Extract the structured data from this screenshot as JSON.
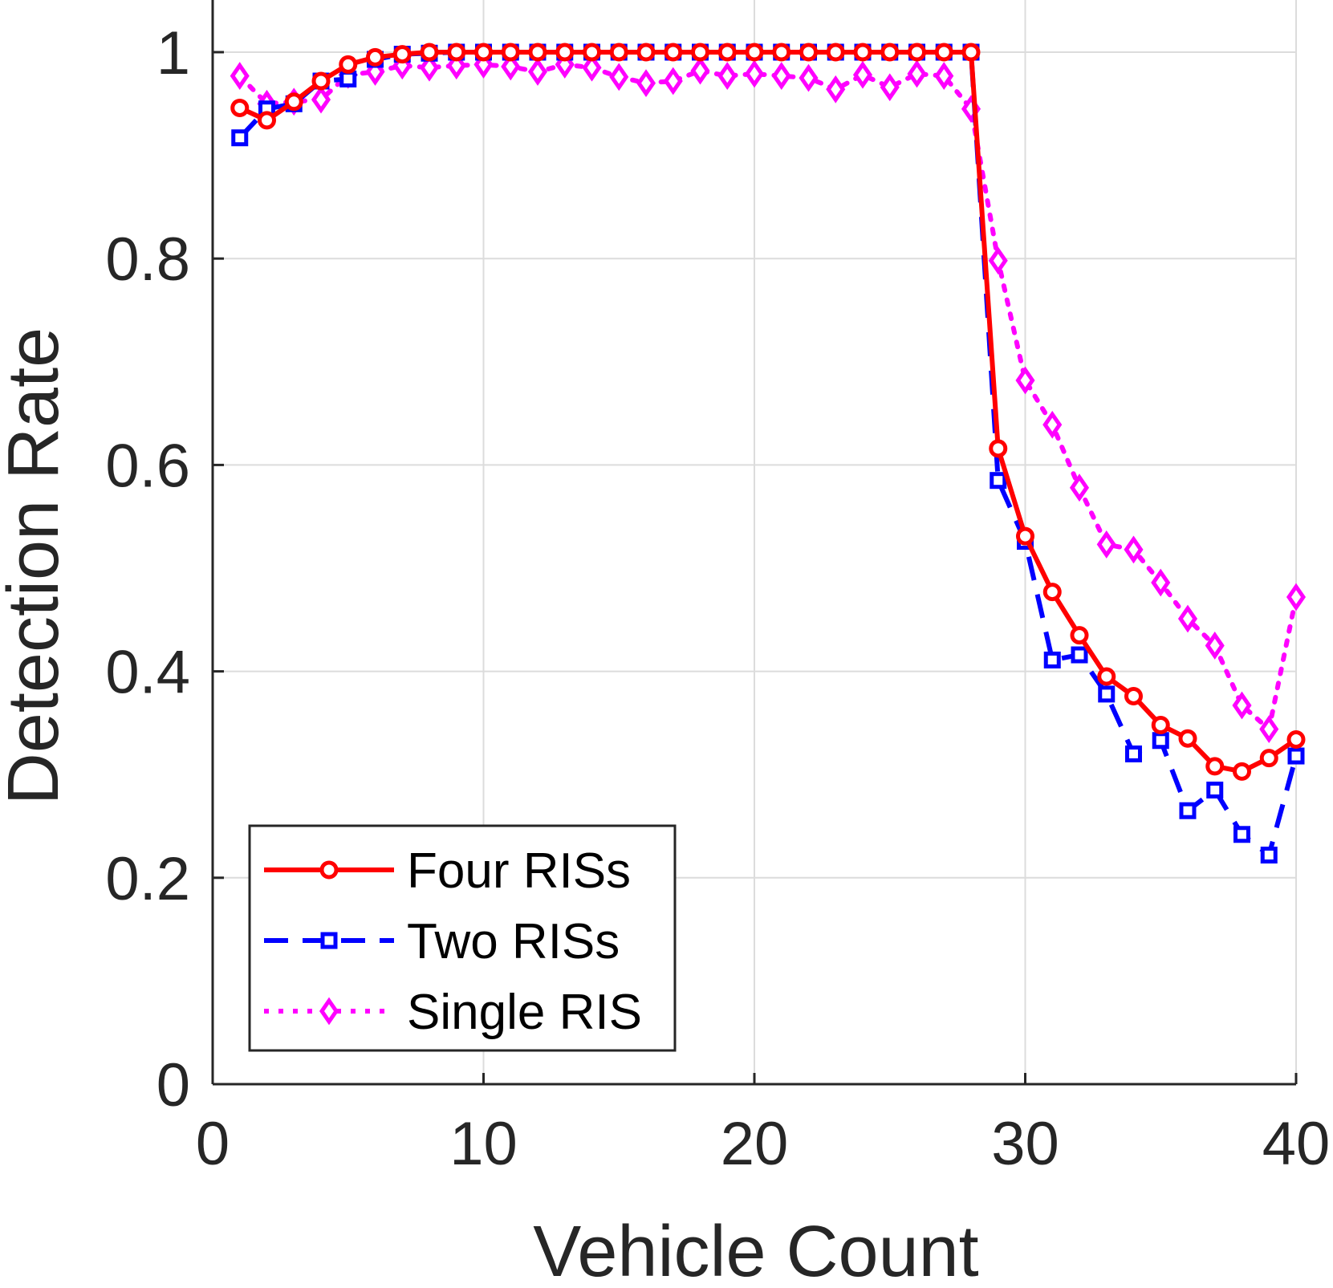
{
  "chart_data": {
    "type": "line",
    "title": "",
    "xlabel": "Vehicle Count",
    "ylabel": "Detection Rate",
    "xlim": [
      0,
      40
    ],
    "ylim": [
      0,
      1.05
    ],
    "xticks": [
      0,
      10,
      20,
      30,
      40
    ],
    "xtick_labels": [
      "0",
      "10",
      "20",
      "30",
      "40"
    ],
    "yticks": [
      0,
      0.2,
      0.4,
      0.6,
      0.8,
      1
    ],
    "ytick_labels": [
      "0",
      "0.2",
      "0.4",
      "0.6",
      "0.8",
      "1"
    ],
    "grid": true,
    "legend_position": "bottom-left",
    "x": [
      1,
      2,
      3,
      4,
      5,
      6,
      7,
      8,
      9,
      10,
      11,
      12,
      13,
      14,
      15,
      16,
      17,
      18,
      19,
      20,
      21,
      22,
      23,
      24,
      25,
      26,
      27,
      28,
      29,
      30,
      31,
      32,
      33,
      34,
      35,
      36,
      37,
      38,
      39,
      40
    ],
    "series": [
      {
        "name": "Four RISs",
        "color": "#ff0000",
        "line_style": "solid",
        "marker": "circle",
        "values": [
          0.946,
          0.934,
          0.952,
          0.972,
          0.988,
          0.995,
          0.998,
          1,
          1,
          1,
          1,
          1,
          1,
          1,
          1,
          1,
          1,
          1,
          1,
          1,
          1,
          1,
          1,
          1,
          1,
          1,
          1,
          1,
          0.616,
          0.531,
          0.477,
          0.435,
          0.395,
          0.376,
          0.348,
          0.335,
          0.308,
          0.303,
          0.316,
          0.334
        ]
      },
      {
        "name": "Two RISs",
        "color": "#0000ff",
        "line_style": "dashed",
        "marker": "square",
        "values": [
          0.917,
          0.945,
          0.95,
          0.972,
          0.974,
          0.993,
          0.998,
          0.999,
          1,
          1,
          1,
          1,
          1,
          1,
          1,
          1,
          1,
          1,
          1,
          1,
          1,
          1,
          1,
          1,
          1,
          1,
          1,
          1,
          0.585,
          0.526,
          0.411,
          0.416,
          0.378,
          0.32,
          0.333,
          0.265,
          0.285,
          0.242,
          0.222,
          0.318
        ]
      },
      {
        "name": "Single RIS",
        "color": "#ff00ff",
        "line_style": "dotted",
        "marker": "diamond",
        "values": [
          0.977,
          0.95,
          0.952,
          0.954,
          0.978,
          0.981,
          0.987,
          0.985,
          0.987,
          0.988,
          0.986,
          0.981,
          0.988,
          0.985,
          0.976,
          0.97,
          0.972,
          0.982,
          0.977,
          0.979,
          0.977,
          0.975,
          0.964,
          0.978,
          0.966,
          0.979,
          0.977,
          0.945,
          0.798,
          0.682,
          0.639,
          0.578,
          0.523,
          0.518,
          0.486,
          0.451,
          0.425,
          0.367,
          0.344,
          0.472
        ]
      }
    ]
  }
}
